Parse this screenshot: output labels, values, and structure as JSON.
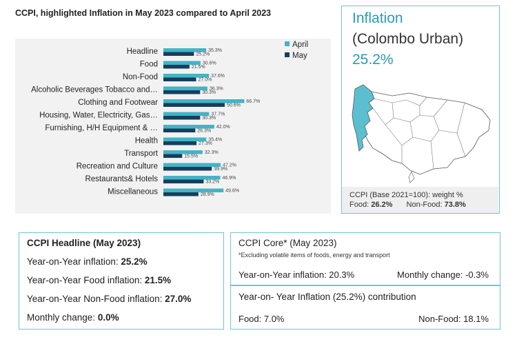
{
  "chart_data": {
    "type": "bar",
    "title": "CCPI, highlighted Inflation in May 2023 compared to April 2023",
    "categories": [
      "Headline",
      "Food",
      "Non-Food",
      "Alcoholic Beverages Tobacco and…",
      "Clothing and Footwear",
      "Housing, Water, Electricity, Gas…",
      "Furnishing, H/H Equipment & …",
      "Health",
      "Transport",
      "Recreation and Culture",
      "Restaurants& Hotels",
      "Miscellaneous"
    ],
    "series": [
      {
        "name": "April",
        "color": "#45b3c6",
        "values": [
          35.3,
          30.6,
          37.6,
          36.3,
          66.7,
          37.7,
          42.0,
          35.4,
          32.3,
          47.2,
          46.9,
          49.6
        ],
        "labels": [
          "35.3%",
          "30.6%",
          "37.6%",
          "36.3%",
          "66.7%",
          "37.7%",
          "42.0%",
          "35.4%",
          "32.3%",
          "47.2%",
          "46.9%",
          "49.6%"
        ]
      },
      {
        "name": "May",
        "color": "#173e5c",
        "values": [
          25.2,
          21.5,
          27.0,
          30.3,
          50.6,
          30.3,
          26.3,
          27.3,
          15.5,
          39.9,
          33.2,
          28.9
        ],
        "labels": [
          "25.2%",
          "21.5%",
          "27.0%",
          "30.3%",
          "50.6%",
          "30.3%",
          "26.3%",
          "27.3%",
          "15.5%",
          "39.9%",
          "33.2%",
          "28.9%"
        ]
      }
    ],
    "orientation": "horizontal",
    "legend_position": "top-right",
    "grid": false
  },
  "inflation": {
    "title": "Inflation",
    "region": "(Colombo Urban)",
    "value": "25.2%",
    "weight_label": "CCPI (Base 2021=100): weight %",
    "food_label": "Food:",
    "food_value": "26.2%",
    "nonfood_label": "Non-Food:",
    "nonfood_value": "73.8%",
    "map_colors": {
      "highlight": "#5bbfd0",
      "other": "#ffffff",
      "border": "#555555"
    }
  },
  "headline": {
    "title": "CCPI Headline (May 2023)",
    "yoy_label": "Year-on-Year inflation:",
    "yoy_value": "25.2%",
    "food_label": "Year-on-Year Food inflation:",
    "food_value": "21.5%",
    "nonfood_label": "Year-on-Year Non-Food inflation:",
    "nonfood_value": "27.0%",
    "monthly_label": "Monthly change:",
    "monthly_value": "0.0%"
  },
  "core": {
    "title": "CCPI Core* (May 2023)",
    "note": "*Excluding volatile items of foods, energy and transport",
    "yoy": "Year-on-Year inflation: 20.3%",
    "monthly": "Monthly change: -0.3%"
  },
  "contribution": {
    "title": "Year-on- Year Inflation (25.2%) contribution",
    "food": "Food: 7.0%",
    "nonfood": "Non-Food: 18.1%"
  },
  "colors": {
    "accent": "#6cc6d1",
    "april": "#45b3c6",
    "may": "#173e5c"
  }
}
